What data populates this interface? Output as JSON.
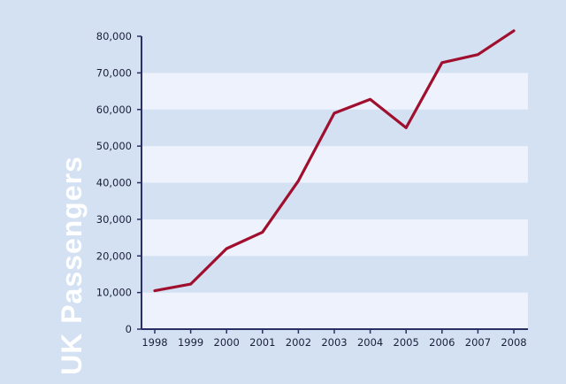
{
  "chart_data": {
    "type": "line",
    "title": "",
    "xlabel": "",
    "ylabel": "UK Passengers",
    "x": [
      "1998",
      "1999",
      "2000",
      "2001",
      "2002",
      "2003",
      "2004",
      "2005",
      "2006",
      "2007",
      "2008"
    ],
    "series": [
      {
        "values": [
          10500,
          12300,
          22000,
          26500,
          40500,
          59000,
          62800,
          55000,
          72800,
          75000,
          81500
        ],
        "color": "#a0102e"
      }
    ],
    "ylim": [
      0,
      80000
    ],
    "yticks": [
      0,
      10000,
      20000,
      30000,
      40000,
      50000,
      60000,
      70000,
      80000
    ],
    "ytick_labels": [
      "0",
      "10,000",
      "20,000",
      "30,000",
      "40,000",
      "50,000",
      "60,000",
      "70,000",
      "80,000"
    ],
    "grid": "alternating horizontal bands",
    "legend": "none",
    "colors": {
      "background": "#d3e1f3",
      "band_light": "#eef2fc",
      "axis": "#2a2f66",
      "line": "#a0102e"
    }
  }
}
